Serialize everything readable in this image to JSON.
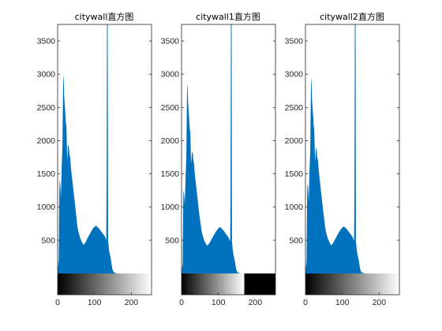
{
  "figure": {
    "bar_color": "#0072BD"
  },
  "chart_data": [
    {
      "type": "bar",
      "title": "citywall直方图",
      "xlabel": "",
      "ylabel": "",
      "xlim": [
        0,
        255
      ],
      "ylim": [
        0,
        3750
      ],
      "xticks": [
        0,
        100,
        200
      ],
      "yticks": [
        500,
        1000,
        1500,
        2000,
        2500,
        3000,
        3500
      ],
      "colorbar": {
        "type": "grayscale-ramp",
        "from": 0,
        "to": 255,
        "cutoff": null
      },
      "series": [
        {
          "points": [
            [
              0,
              40
            ],
            [
              3,
              200
            ],
            [
              5,
              1400
            ],
            [
              7,
              1350
            ],
            [
              9,
              1150
            ],
            [
              11,
              1600
            ],
            [
              13,
              1900
            ],
            [
              15,
              2900
            ],
            [
              16,
              3000
            ],
            [
              18,
              2650
            ],
            [
              20,
              2500
            ],
            [
              22,
              2300
            ],
            [
              24,
              2200
            ],
            [
              26,
              1700
            ],
            [
              28,
              1900
            ],
            [
              30,
              1950
            ],
            [
              32,
              1800
            ],
            [
              34,
              1750
            ],
            [
              36,
              1600
            ],
            [
              38,
              1500
            ],
            [
              40,
              1400
            ],
            [
              42,
              1300
            ],
            [
              44,
              1200
            ],
            [
              46,
              1100
            ],
            [
              48,
              1000
            ],
            [
              50,
              900
            ],
            [
              52,
              800
            ],
            [
              54,
              700
            ],
            [
              56,
              640
            ],
            [
              58,
              600
            ],
            [
              60,
              560
            ],
            [
              62,
              520
            ],
            [
              64,
              500
            ],
            [
              66,
              470
            ],
            [
              68,
              450
            ],
            [
              70,
              430
            ],
            [
              72,
              440
            ],
            [
              76,
              470
            ],
            [
              80,
              520
            ],
            [
              84,
              560
            ],
            [
              88,
              600
            ],
            [
              92,
              640
            ],
            [
              96,
              680
            ],
            [
              100,
              700
            ],
            [
              104,
              720
            ],
            [
              108,
              700
            ],
            [
              112,
              680
            ],
            [
              116,
              650
            ],
            [
              120,
              620
            ],
            [
              124,
              590
            ],
            [
              128,
              560
            ],
            [
              130,
              530
            ],
            [
              132,
              500
            ],
            [
              133,
              1200
            ],
            [
              134,
              3750
            ],
            [
              136,
              3750
            ],
            [
              137,
              500
            ],
            [
              139,
              380
            ],
            [
              141,
              300
            ],
            [
              143,
              260
            ],
            [
              145,
              200
            ],
            [
              147,
              120
            ],
            [
              149,
              60
            ],
            [
              152,
              20
            ],
            [
              160,
              0
            ]
          ]
        }
      ]
    },
    {
      "type": "bar",
      "title": "citywall1直方图",
      "xlabel": "",
      "ylabel": "",
      "xlim": [
        0,
        255
      ],
      "ylim": [
        0,
        3750
      ],
      "xticks": [
        0,
        100,
        200
      ],
      "yticks": [
        500,
        1000,
        1500,
        2000,
        2500,
        3000,
        3500
      ],
      "colorbar": {
        "type": "grayscale-ramp-clipped",
        "from": 0,
        "to": 255,
        "cutoff": 170
      },
      "series": [
        {
          "points": [
            [
              0,
              30
            ],
            [
              3,
              150
            ],
            [
              5,
              1250
            ],
            [
              7,
              1200
            ],
            [
              9,
              1050
            ],
            [
              11,
              1450
            ],
            [
              13,
              1750
            ],
            [
              15,
              2800
            ],
            [
              16,
              2850
            ],
            [
              18,
              2550
            ],
            [
              20,
              2400
            ],
            [
              22,
              2200
            ],
            [
              24,
              2100
            ],
            [
              26,
              1650
            ],
            [
              28,
              1800
            ],
            [
              30,
              1850
            ],
            [
              32,
              1700
            ],
            [
              34,
              1650
            ],
            [
              36,
              1500
            ],
            [
              38,
              1400
            ],
            [
              40,
              1300
            ],
            [
              42,
              1200
            ],
            [
              44,
              1100
            ],
            [
              46,
              1000
            ],
            [
              48,
              900
            ],
            [
              50,
              820
            ],
            [
              52,
              740
            ],
            [
              54,
              660
            ],
            [
              56,
              600
            ],
            [
              58,
              560
            ],
            [
              60,
              520
            ],
            [
              62,
              490
            ],
            [
              64,
              470
            ],
            [
              66,
              450
            ],
            [
              68,
              430
            ],
            [
              70,
              420
            ],
            [
              72,
              430
            ],
            [
              76,
              460
            ],
            [
              80,
              500
            ],
            [
              84,
              540
            ],
            [
              88,
              580
            ],
            [
              92,
              620
            ],
            [
              96,
              650
            ],
            [
              100,
              680
            ],
            [
              104,
              700
            ],
            [
              108,
              680
            ],
            [
              112,
              660
            ],
            [
              116,
              630
            ],
            [
              120,
              600
            ],
            [
              124,
              570
            ],
            [
              128,
              540
            ],
            [
              130,
              510
            ],
            [
              132,
              480
            ],
            [
              133,
              1100
            ],
            [
              134,
              3750
            ],
            [
              136,
              3750
            ],
            [
              137,
              480
            ],
            [
              139,
              360
            ],
            [
              141,
              280
            ],
            [
              143,
              230
            ],
            [
              145,
              180
            ],
            [
              147,
              110
            ],
            [
              149,
              50
            ],
            [
              152,
              15
            ],
            [
              160,
              0
            ]
          ]
        }
      ]
    },
    {
      "type": "bar",
      "title": "citywall2直方图",
      "xlabel": "",
      "ylabel": "",
      "xlim": [
        0,
        255
      ],
      "ylim": [
        0,
        3750
      ],
      "xticks": [
        0,
        100,
        200
      ],
      "yticks": [
        500,
        1000,
        1500,
        2000,
        2500,
        3000,
        3500
      ],
      "colorbar": {
        "type": "grayscale-ramp",
        "from": 0,
        "to": 255,
        "cutoff": null
      },
      "series": [
        {
          "points": [
            [
              0,
              35
            ],
            [
              3,
              180
            ],
            [
              5,
              1350
            ],
            [
              7,
              1300
            ],
            [
              9,
              1100
            ],
            [
              11,
              1550
            ],
            [
              13,
              1850
            ],
            [
              15,
              2850
            ],
            [
              16,
              2950
            ],
            [
              18,
              2600
            ],
            [
              20,
              2450
            ],
            [
              22,
              2250
            ],
            [
              24,
              2150
            ],
            [
              26,
              1680
            ],
            [
              28,
              1850
            ],
            [
              30,
              1900
            ],
            [
              32,
              1750
            ],
            [
              34,
              1700
            ],
            [
              36,
              1550
            ],
            [
              38,
              1450
            ],
            [
              40,
              1350
            ],
            [
              42,
              1250
            ],
            [
              44,
              1150
            ],
            [
              46,
              1050
            ],
            [
              48,
              950
            ],
            [
              50,
              860
            ],
            [
              52,
              770
            ],
            [
              54,
              680
            ],
            [
              56,
              620
            ],
            [
              58,
              580
            ],
            [
              60,
              540
            ],
            [
              62,
              505
            ],
            [
              64,
              485
            ],
            [
              66,
              460
            ],
            [
              68,
              440
            ],
            [
              70,
              425
            ],
            [
              72,
              435
            ],
            [
              76,
              465
            ],
            [
              80,
              510
            ],
            [
              84,
              550
            ],
            [
              88,
              590
            ],
            [
              92,
              630
            ],
            [
              96,
              665
            ],
            [
              100,
              690
            ],
            [
              104,
              710
            ],
            [
              108,
              690
            ],
            [
              112,
              670
            ],
            [
              116,
              640
            ],
            [
              120,
              610
            ],
            [
              124,
              580
            ],
            [
              128,
              550
            ],
            [
              130,
              520
            ],
            [
              132,
              490
            ],
            [
              133,
              1150
            ],
            [
              134,
              3750
            ],
            [
              136,
              3750
            ],
            [
              137,
              490
            ],
            [
              139,
              370
            ],
            [
              141,
              290
            ],
            [
              143,
              245
            ],
            [
              145,
              190
            ],
            [
              147,
              115
            ],
            [
              149,
              55
            ],
            [
              152,
              18
            ],
            [
              160,
              0
            ]
          ]
        }
      ]
    }
  ]
}
